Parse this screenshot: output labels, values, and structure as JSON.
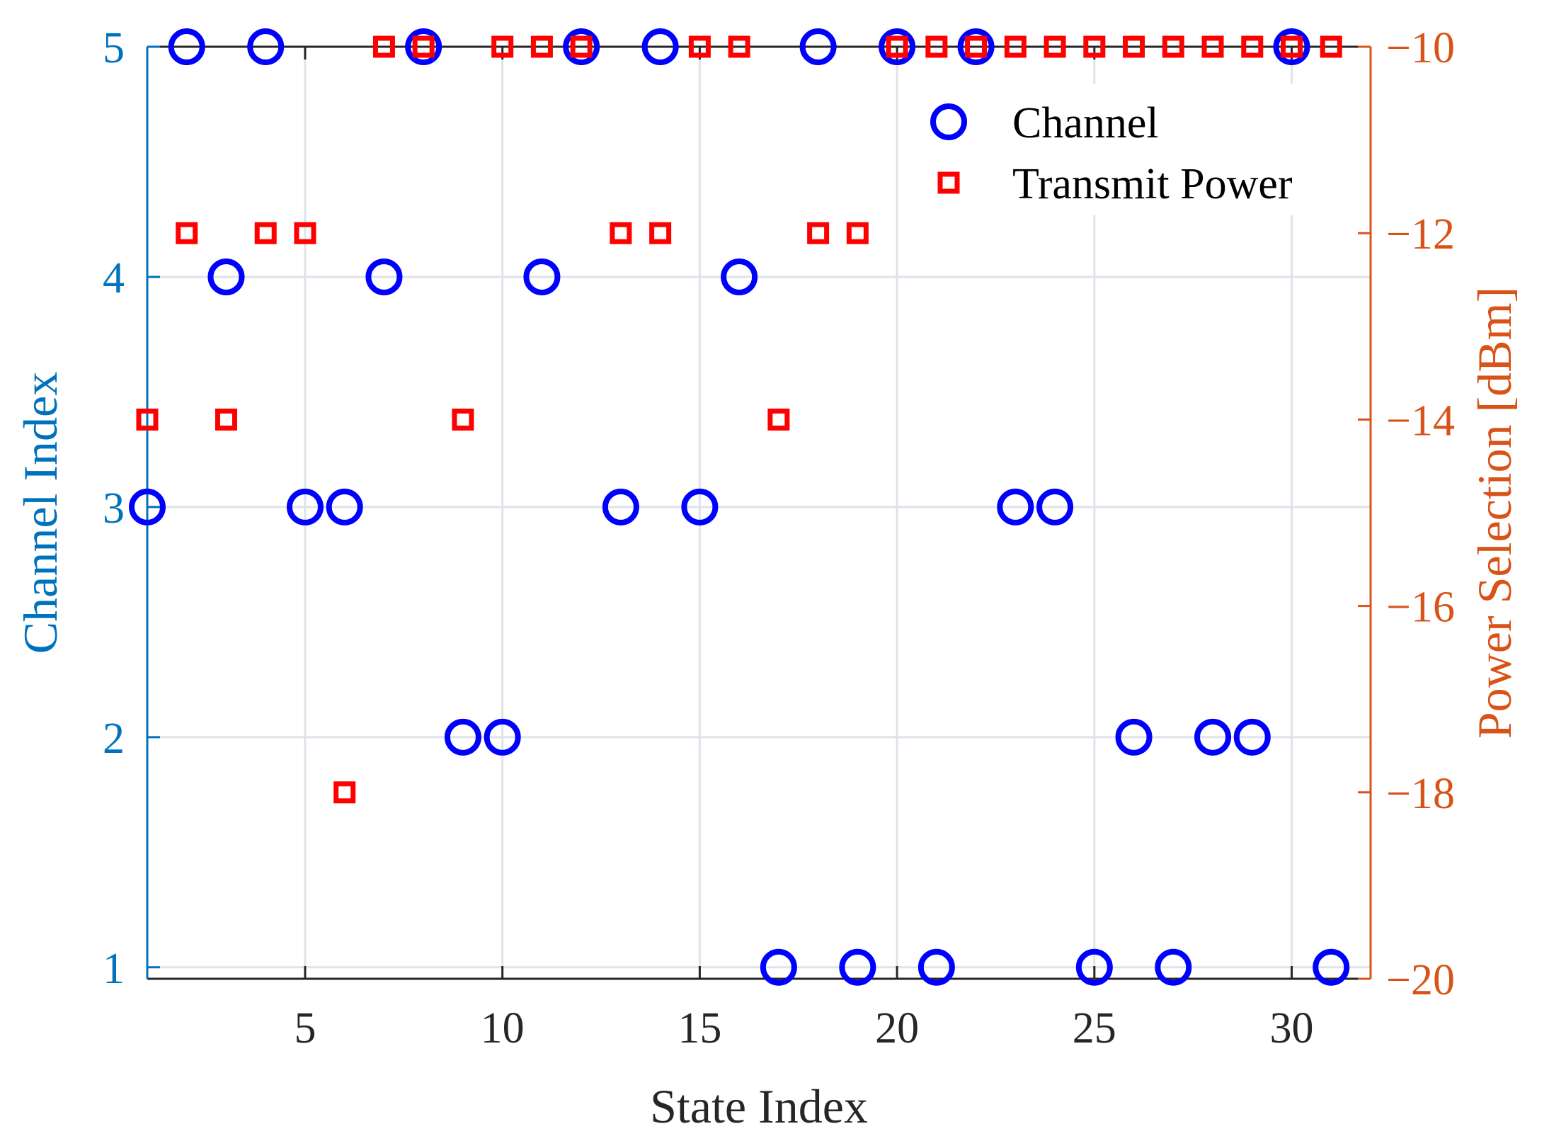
{
  "chart_data": {
    "type": "scatter",
    "title": "",
    "xlabel": "State Index",
    "ylabel_left": "Channel Index",
    "ylabel_right": "Power Selection [dBm]",
    "xlim": [
      1,
      32
    ],
    "ylim_left": [
      0.95,
      5
    ],
    "ylim_right": [
      -20,
      -10
    ],
    "xticks": [
      5,
      10,
      15,
      20,
      25,
      30
    ],
    "xtick_labels": [
      "5",
      "10",
      "15",
      "20",
      "25",
      "30"
    ],
    "yticks_left": [
      1,
      2,
      3,
      4,
      5
    ],
    "ytick_labels_left": [
      "1",
      "2",
      "3",
      "4",
      "5"
    ],
    "yticks_right": [
      -20,
      -18,
      -16,
      -14,
      -12,
      -10
    ],
    "ytick_labels_right": [
      "−20",
      "−18",
      "−16",
      "−14",
      "−12",
      "−10"
    ],
    "grid": true,
    "legend_position": "top-right",
    "colors": {
      "left_axis": "#0072BD",
      "right_axis": "#D95319",
      "channel_marker": "#0000FF",
      "power_marker": "#FF0000",
      "grid": "#dfe3ea",
      "axis_text": "#262626"
    },
    "series": [
      {
        "name": "Channel",
        "axis": "left",
        "marker": "circle",
        "x": [
          1,
          2,
          3,
          4,
          5,
          6,
          7,
          8,
          9,
          10,
          11,
          12,
          13,
          14,
          15,
          16,
          17,
          18,
          19,
          20,
          21,
          22,
          23,
          24,
          25,
          26,
          27,
          28,
          29,
          30,
          31
        ],
        "y": [
          3,
          5,
          4,
          5,
          3,
          3,
          4,
          5,
          2,
          2,
          4,
          5,
          3,
          5,
          3,
          4,
          1,
          5,
          1,
          5,
          1,
          5,
          3,
          3,
          1,
          2,
          1,
          2,
          2,
          5,
          1
        ]
      },
      {
        "name": "Transmit Power",
        "axis": "right",
        "marker": "square",
        "x": [
          1,
          2,
          3,
          4,
          5,
          6,
          7,
          8,
          9,
          10,
          11,
          12,
          13,
          14,
          15,
          16,
          17,
          18,
          19,
          20,
          21,
          22,
          23,
          24,
          25,
          26,
          27,
          28,
          29,
          30,
          31
        ],
        "y": [
          -14,
          -12,
          -14,
          -12,
          -12,
          -18,
          -10,
          -10,
          -14,
          -10,
          -10,
          -10,
          -12,
          -12,
          -10,
          -10,
          -14,
          -12,
          -12,
          -10,
          -10,
          -10,
          -10,
          -10,
          -10,
          -10,
          -10,
          -10,
          -10,
          -10,
          -10
        ]
      }
    ]
  }
}
